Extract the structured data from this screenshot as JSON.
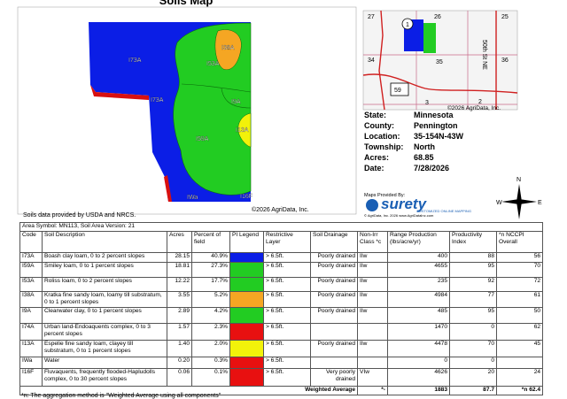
{
  "header": {
    "title": "Soils Map"
  },
  "map": {
    "labels": [
      "I73A",
      "I53A",
      "I38A",
      "I73A",
      "I9A",
      "I59A",
      "I13A",
      "IWa",
      "I16F"
    ],
    "copyright": "©2026 AgriData, Inc."
  },
  "location_map": {
    "labels": [
      "27",
      "26",
      "25",
      "1",
      "34",
      "35",
      "36",
      "59",
      "3",
      "2"
    ],
    "road": "50th St NE",
    "copyright": "©2026 AgriData, Inc."
  },
  "info": [
    {
      "label": "State:",
      "value": "Minnesota"
    },
    {
      "label": "County:",
      "value": "Pennington"
    },
    {
      "label": "Location:",
      "value": "35-154N-43W"
    },
    {
      "label": "Township:",
      "value": "North"
    },
    {
      "label": "Acres:",
      "value": "68.85"
    },
    {
      "label": "Date:",
      "value": "7/28/2026"
    }
  ],
  "branding": {
    "provided_by": "Maps Provided By:",
    "logo": "surety",
    "tagline": "CUSTOMIZED ONLINE MAPPING",
    "footer": "© AgriData, Inc. 2026    www.AgriDataInc.com"
  },
  "compass": {
    "n": "N",
    "e": "E",
    "s": "S",
    "w": "W"
  },
  "source_note": "Soils data provided by USDA and NRCS.",
  "table": {
    "area": "Area Symbol: MN113, Soil Area Version: 21",
    "headers": [
      "Code",
      "Soil Description",
      "Acres",
      "Percent of field",
      "PI Legend",
      "Restrictive Layer",
      "Soil Drainage",
      "Non-Irr Class *c",
      "Range Production (lbs/acre/yr)",
      "Productivity Index",
      "*n NCCPI Overall"
    ],
    "legend_colors": [
      "#0b1ee6",
      "#22cc22",
      "#22cc22",
      "#f5a623",
      "#22cc22",
      "#e81010",
      "#f2f20a",
      "#e81010",
      "#e81010"
    ],
    "rows": [
      [
        "I73A",
        "Boash clay loam, 0 to 2 percent slopes",
        "28.15",
        "40.9%",
        "> 6.5ft.",
        "Poorly drained",
        "IIw",
        "400",
        "88",
        "56"
      ],
      [
        "I59A",
        "Smiley loam, 0 to 1 percent slopes",
        "18.81",
        "27.3%",
        "> 6.5ft.",
        "Poorly drained",
        "IIw",
        "4655",
        "95",
        "70"
      ],
      [
        "I53A",
        "Roliss loam, 0 to 2 percent slopes",
        "12.22",
        "17.7%",
        "> 6.5ft.",
        "Poorly drained",
        "IIw",
        "235",
        "92",
        "72"
      ],
      [
        "I38A",
        "Kratka fine sandy loam, loamy till substratum, 0 to 1 percent slopes",
        "3.55",
        "5.2%",
        "> 6.5ft.",
        "Poorly drained",
        "IIw",
        "4984",
        "77",
        "61"
      ],
      [
        "I9A",
        "Clearwater clay, 0 to 1 percent slopes",
        "2.89",
        "4.2%",
        "> 6.5ft.",
        "Poorly drained",
        "IIw",
        "485",
        "95",
        "50"
      ],
      [
        "I74A",
        "Urban land-Endoaquents complex, 0 to 3 percent slopes",
        "1.57",
        "2.3%",
        "> 6.5ft.",
        null,
        null,
        "1470",
        "0",
        "62"
      ],
      [
        "I13A",
        "Espelie fine sandy loam, clayey till substratum, 0 to 1 percent slopes",
        "1.40",
        "2.0%",
        "> 6.5ft.",
        "Poorly drained",
        "IIw",
        "4478",
        "70",
        "45"
      ],
      [
        "IWa",
        "Water",
        "0.20",
        "0.3%",
        "> 6.5ft.",
        null,
        null,
        "0",
        "0",
        null
      ],
      [
        "I16F",
        "Fluvaquents, frequently flooded-Hapludolls complex, 0 to 30 percent slopes",
        "0.06",
        "0.1%",
        "> 6.5ft.",
        "Very poorly drained",
        "VIw",
        "4626",
        "20",
        "24"
      ]
    ],
    "weighted": {
      "label": "Weighted Average",
      "non_irr": "*-",
      "range": "1883",
      "productivity": "87.7",
      "nccpi": "*n 62.4"
    }
  },
  "footnote": "*n: The aggregation method is \"Weighted Average using all components\""
}
